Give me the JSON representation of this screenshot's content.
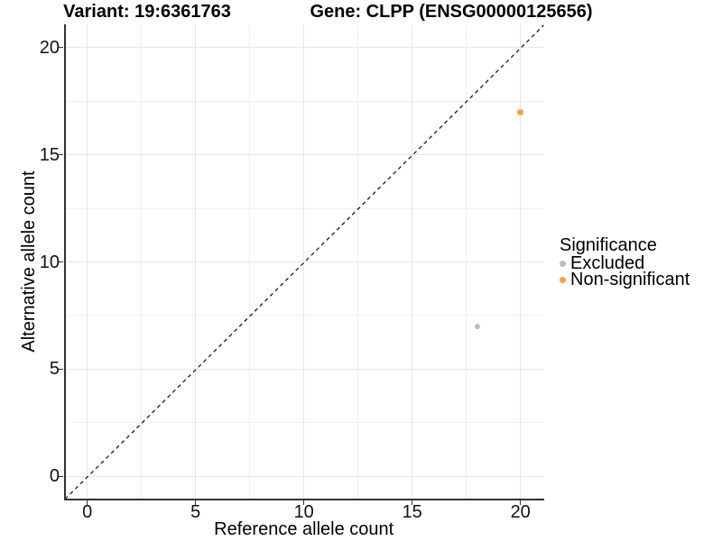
{
  "header": {
    "title_left": "Variant: 19:6361763",
    "title_right": "Gene: CLPP (ENSG00000125656)"
  },
  "chart_data": {
    "type": "scatter",
    "xlabel": "Reference allele count",
    "ylabel": "Alternative allele count",
    "xlim": [
      -1.05,
      21.05
    ],
    "ylim": [
      -1.05,
      21.05
    ],
    "xticks": [
      0,
      5,
      10,
      15,
      20
    ],
    "yticks": [
      0,
      5,
      10,
      15,
      20
    ],
    "xminor": [
      2.5,
      7.5,
      12.5,
      17.5
    ],
    "yminor": [
      2.5,
      7.5,
      12.5,
      17.5
    ],
    "grid": "major+minor on white panel",
    "identity_line": {
      "slope": 1,
      "intercept": 0,
      "style": "dashed",
      "color": "#1a1a1a"
    },
    "legend": {
      "title": "Significance",
      "position": "right"
    },
    "series": [
      {
        "name": "Excluded",
        "color": "#bdbdbd",
        "point_size": 6,
        "points": [
          {
            "x": 18,
            "y": 7
          }
        ]
      },
      {
        "name": "Non-significant",
        "color": "#f9a33c",
        "point_size": 7,
        "points": [
          {
            "x": 20,
            "y": 17
          }
        ]
      }
    ]
  },
  "colors": {
    "grid_major": "#e6e6e6",
    "grid_minor": "#f0f0f0",
    "axis_line": "#333333",
    "text": "#000000"
  }
}
